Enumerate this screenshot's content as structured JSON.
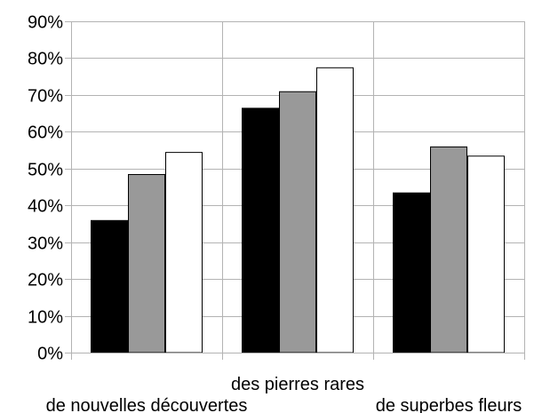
{
  "chart_data": {
    "type": "bar",
    "title": "",
    "xlabel": "",
    "ylabel": "",
    "ylim": [
      0,
      90
    ],
    "y_tick_step": 10,
    "y_tick_format": "percent",
    "grid": true,
    "legend": "none",
    "categories": [
      "de nouvelles découvertes",
      "des pierres rares",
      "de superbes fleurs"
    ],
    "series": [
      {
        "color": "#000000",
        "values": [
          36,
          66.5,
          43.5
        ]
      },
      {
        "color": "#999999",
        "values": [
          48.5,
          71,
          56
        ]
      },
      {
        "color": "#ffffff",
        "values": [
          54.5,
          77.5,
          53.5
        ]
      }
    ]
  }
}
